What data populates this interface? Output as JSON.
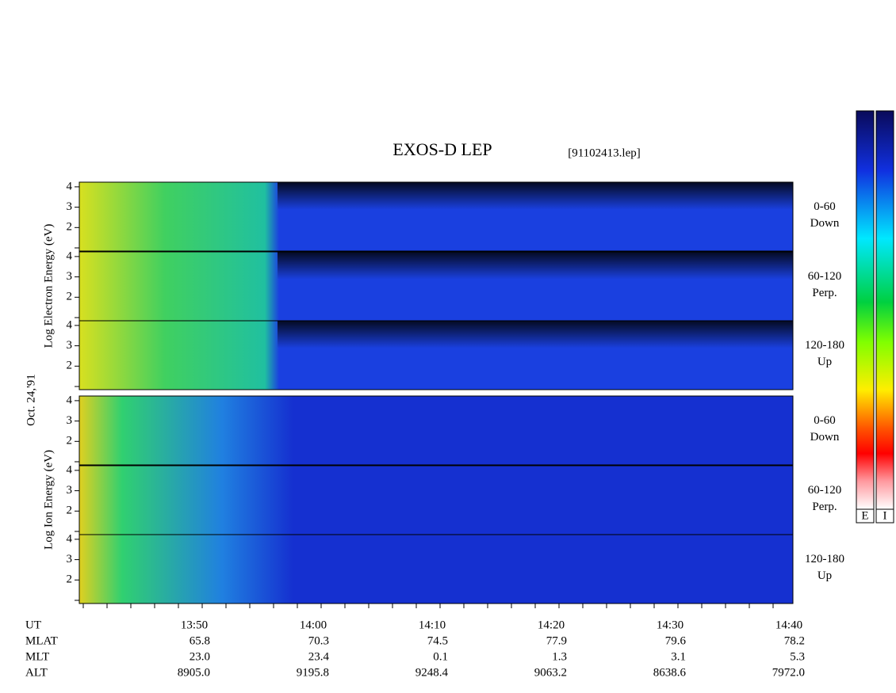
{
  "title": "EXOS-D LEP",
  "file": "[91102413.lep]",
  "date_label": "Oct. 24,'91",
  "groups": [
    {
      "axis_label": "Log  Electron  Energy  (eV)",
      "panels": [
        {
          "labels": [
            "0-60",
            "Down"
          ]
        },
        {
          "labels": [
            "60-120",
            "Perp."
          ]
        },
        {
          "labels": [
            "120-180",
            "Up"
          ]
        }
      ]
    },
    {
      "axis_label": "Log  Ion  Energy  (eV)",
      "panels": [
        {
          "labels": [
            "0-60",
            "Down"
          ]
        },
        {
          "labels": [
            "60-120",
            "Perp."
          ]
        },
        {
          "labels": [
            "120-180",
            "Up"
          ]
        }
      ]
    }
  ],
  "yticks": [
    2,
    3,
    4
  ],
  "rows": [
    {
      "name": "UT",
      "values": [
        "13:50",
        "14:00",
        "14:10",
        "14:20",
        "14:30",
        "14:40"
      ]
    },
    {
      "name": "MLAT",
      "values": [
        "65.8",
        "70.3",
        "74.5",
        "77.9",
        "79.6",
        "78.2"
      ]
    },
    {
      "name": "MLT",
      "values": [
        "23.0",
        "23.4",
        "0.1",
        "1.3",
        "3.1",
        "5.3"
      ]
    },
    {
      "name": "ALT",
      "values": [
        "8905.0",
        "9195.8",
        "9248.4",
        "9063.2",
        "8638.6",
        "7972.0"
      ]
    }
  ],
  "colorbars": [
    "E",
    "I"
  ]
}
